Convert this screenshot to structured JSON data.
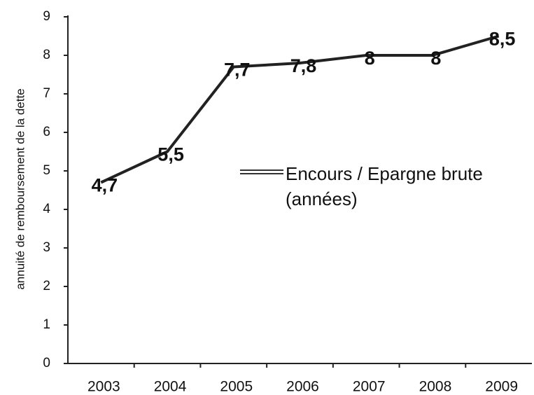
{
  "chart_data": {
    "type": "line",
    "y_label": "annuité de remboursement de la dette",
    "categories": [
      "2003",
      "2004",
      "2005",
      "2006",
      "2007",
      "2008",
      "2009"
    ],
    "series": [
      {
        "name": "Encours / Epargne brute (années)",
        "color": "#222222",
        "values": [
          4.7,
          5.5,
          7.7,
          7.8,
          8,
          8,
          8.5
        ],
        "value_labels": [
          "4,7",
          "5,5",
          "7,7",
          "7,8",
          "8",
          "8",
          "8,5"
        ]
      }
    ],
    "ylim": [
      0,
      9
    ],
    "yticks": [
      0,
      1,
      2,
      3,
      4,
      5,
      6,
      7,
      8,
      9
    ],
    "grid": false,
    "legend": "right"
  }
}
